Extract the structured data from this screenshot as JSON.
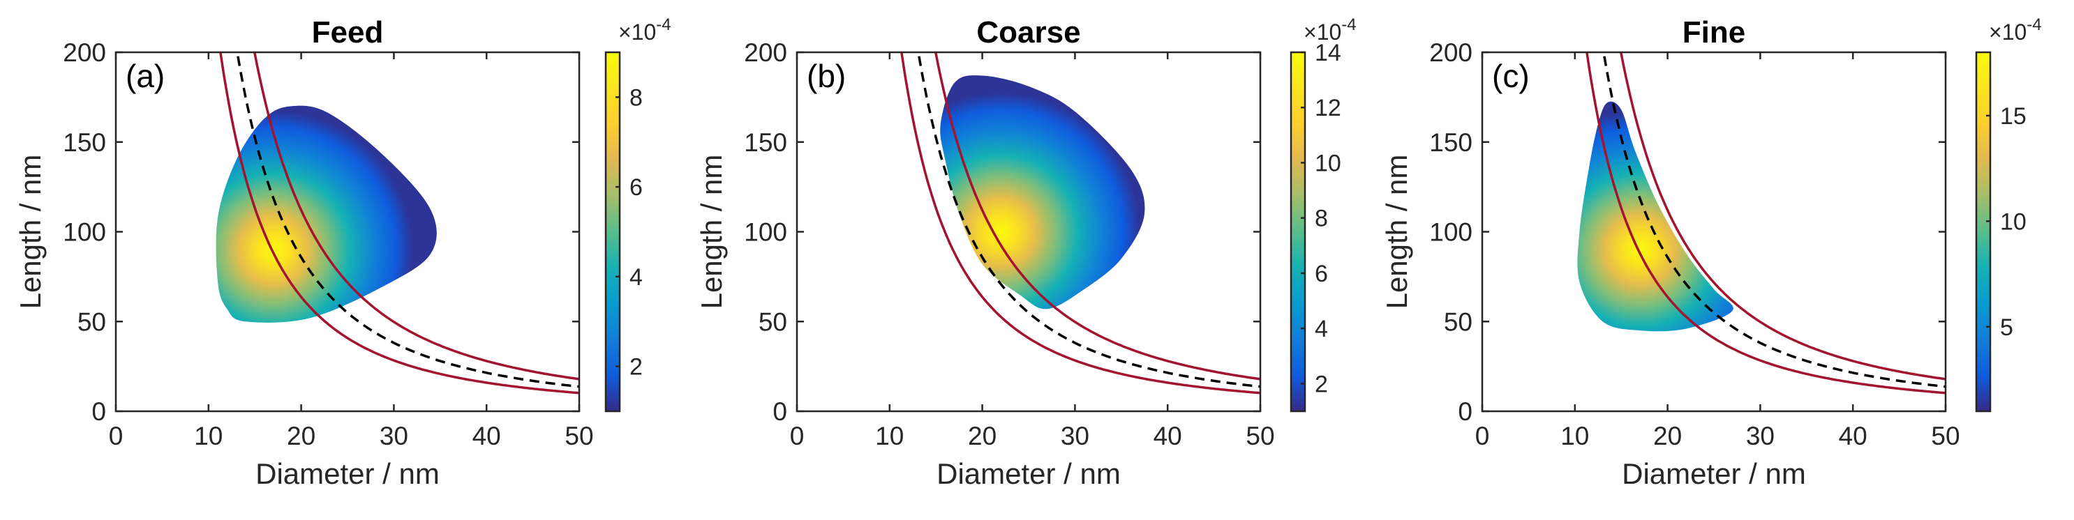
{
  "chart_data": [
    {
      "type": "heatmap",
      "panel_label": "(a)",
      "title": "Feed",
      "xlabel": "Diameter / nm",
      "ylabel": "Length / nm",
      "xlim": [
        0,
        50
      ],
      "ylim": [
        0,
        200
      ],
      "xticks": [
        "0",
        "10",
        "20",
        "30",
        "40",
        "50"
      ],
      "yticks": [
        "0",
        "50",
        "100",
        "150",
        "200"
      ],
      "colorbar": {
        "range": [
          1,
          9
        ],
        "ticks": [
          "2",
          "4",
          "6",
          "8"
        ],
        "exponent_label": "×10",
        "exponent": "-4"
      },
      "distribution": {
        "peak": [
          17,
          90
        ],
        "outline": [
          [
            11,
            72
          ],
          [
            11,
            108
          ],
          [
            13,
            140
          ],
          [
            16,
            163
          ],
          [
            19,
            170
          ],
          [
            23,
            166
          ],
          [
            29,
            142
          ],
          [
            34,
            112
          ],
          [
            34,
            88
          ],
          [
            29,
            70
          ],
          [
            21,
            52
          ],
          [
            14,
            50
          ],
          [
            12,
            57
          ]
        ]
      },
      "cut_curve": {
        "constant": 2450,
        "lower": 1820,
        "upper": 3200
      }
    },
    {
      "type": "heatmap",
      "panel_label": "(b)",
      "title": "Coarse",
      "xlabel": "Diameter / nm",
      "ylabel": "Length / nm",
      "xlim": [
        0,
        50
      ],
      "ylim": [
        0,
        200
      ],
      "xticks": [
        "0",
        "10",
        "20",
        "30",
        "40",
        "50"
      ],
      "yticks": [
        "0",
        "50",
        "100",
        "150",
        "200"
      ],
      "colorbar": {
        "range": [
          1,
          14
        ],
        "ticks": [
          "2",
          "4",
          "6",
          "8",
          "10",
          "12",
          "14"
        ],
        "exponent_label": "×10",
        "exponent": "-4"
      },
      "distribution": {
        "peak": [
          22,
          100
        ],
        "outline": [
          [
            15.5,
            160
          ],
          [
            17,
            183
          ],
          [
            20,
            187
          ],
          [
            25,
            181
          ],
          [
            30,
            167
          ],
          [
            36,
            135
          ],
          [
            37.5,
            110
          ],
          [
            35,
            85
          ],
          [
            31,
            68
          ],
          [
            27,
            57
          ],
          [
            24,
            65
          ],
          [
            20,
            82
          ],
          [
            17.5,
            110
          ],
          [
            16,
            140
          ]
        ]
      },
      "cut_curve": {
        "constant": 2450,
        "lower": 1820,
        "upper": 3200
      }
    },
    {
      "type": "heatmap",
      "panel_label": "(c)",
      "title": "Fine",
      "xlabel": "Diameter / nm",
      "ylabel": "Length / nm",
      "xlim": [
        0,
        50
      ],
      "ylim": [
        0,
        200
      ],
      "xticks": [
        "0",
        "10",
        "20",
        "30",
        "40",
        "50"
      ],
      "yticks": [
        "0",
        "50",
        "100",
        "150",
        "200"
      ],
      "colorbar": {
        "range": [
          1,
          18
        ],
        "ticks": [
          "5",
          "10",
          "15"
        ],
        "exponent_label": "×10",
        "exponent": "-4"
      },
      "distribution": {
        "peak": [
          17,
          90
        ],
        "outline": [
          [
            13.5,
            172
          ],
          [
            15,
            168
          ],
          [
            16.5,
            145
          ],
          [
            19,
            115
          ],
          [
            22,
            88
          ],
          [
            25,
            68
          ],
          [
            27,
            56
          ],
          [
            22,
            46
          ],
          [
            17,
            45
          ],
          [
            13,
            50
          ],
          [
            10.5,
            72
          ],
          [
            10.5,
            100
          ],
          [
            11.5,
            135
          ],
          [
            12.5,
            160
          ]
        ]
      },
      "cut_curve": {
        "constant": 2450,
        "lower": 1820,
        "upper": 3200
      }
    }
  ]
}
